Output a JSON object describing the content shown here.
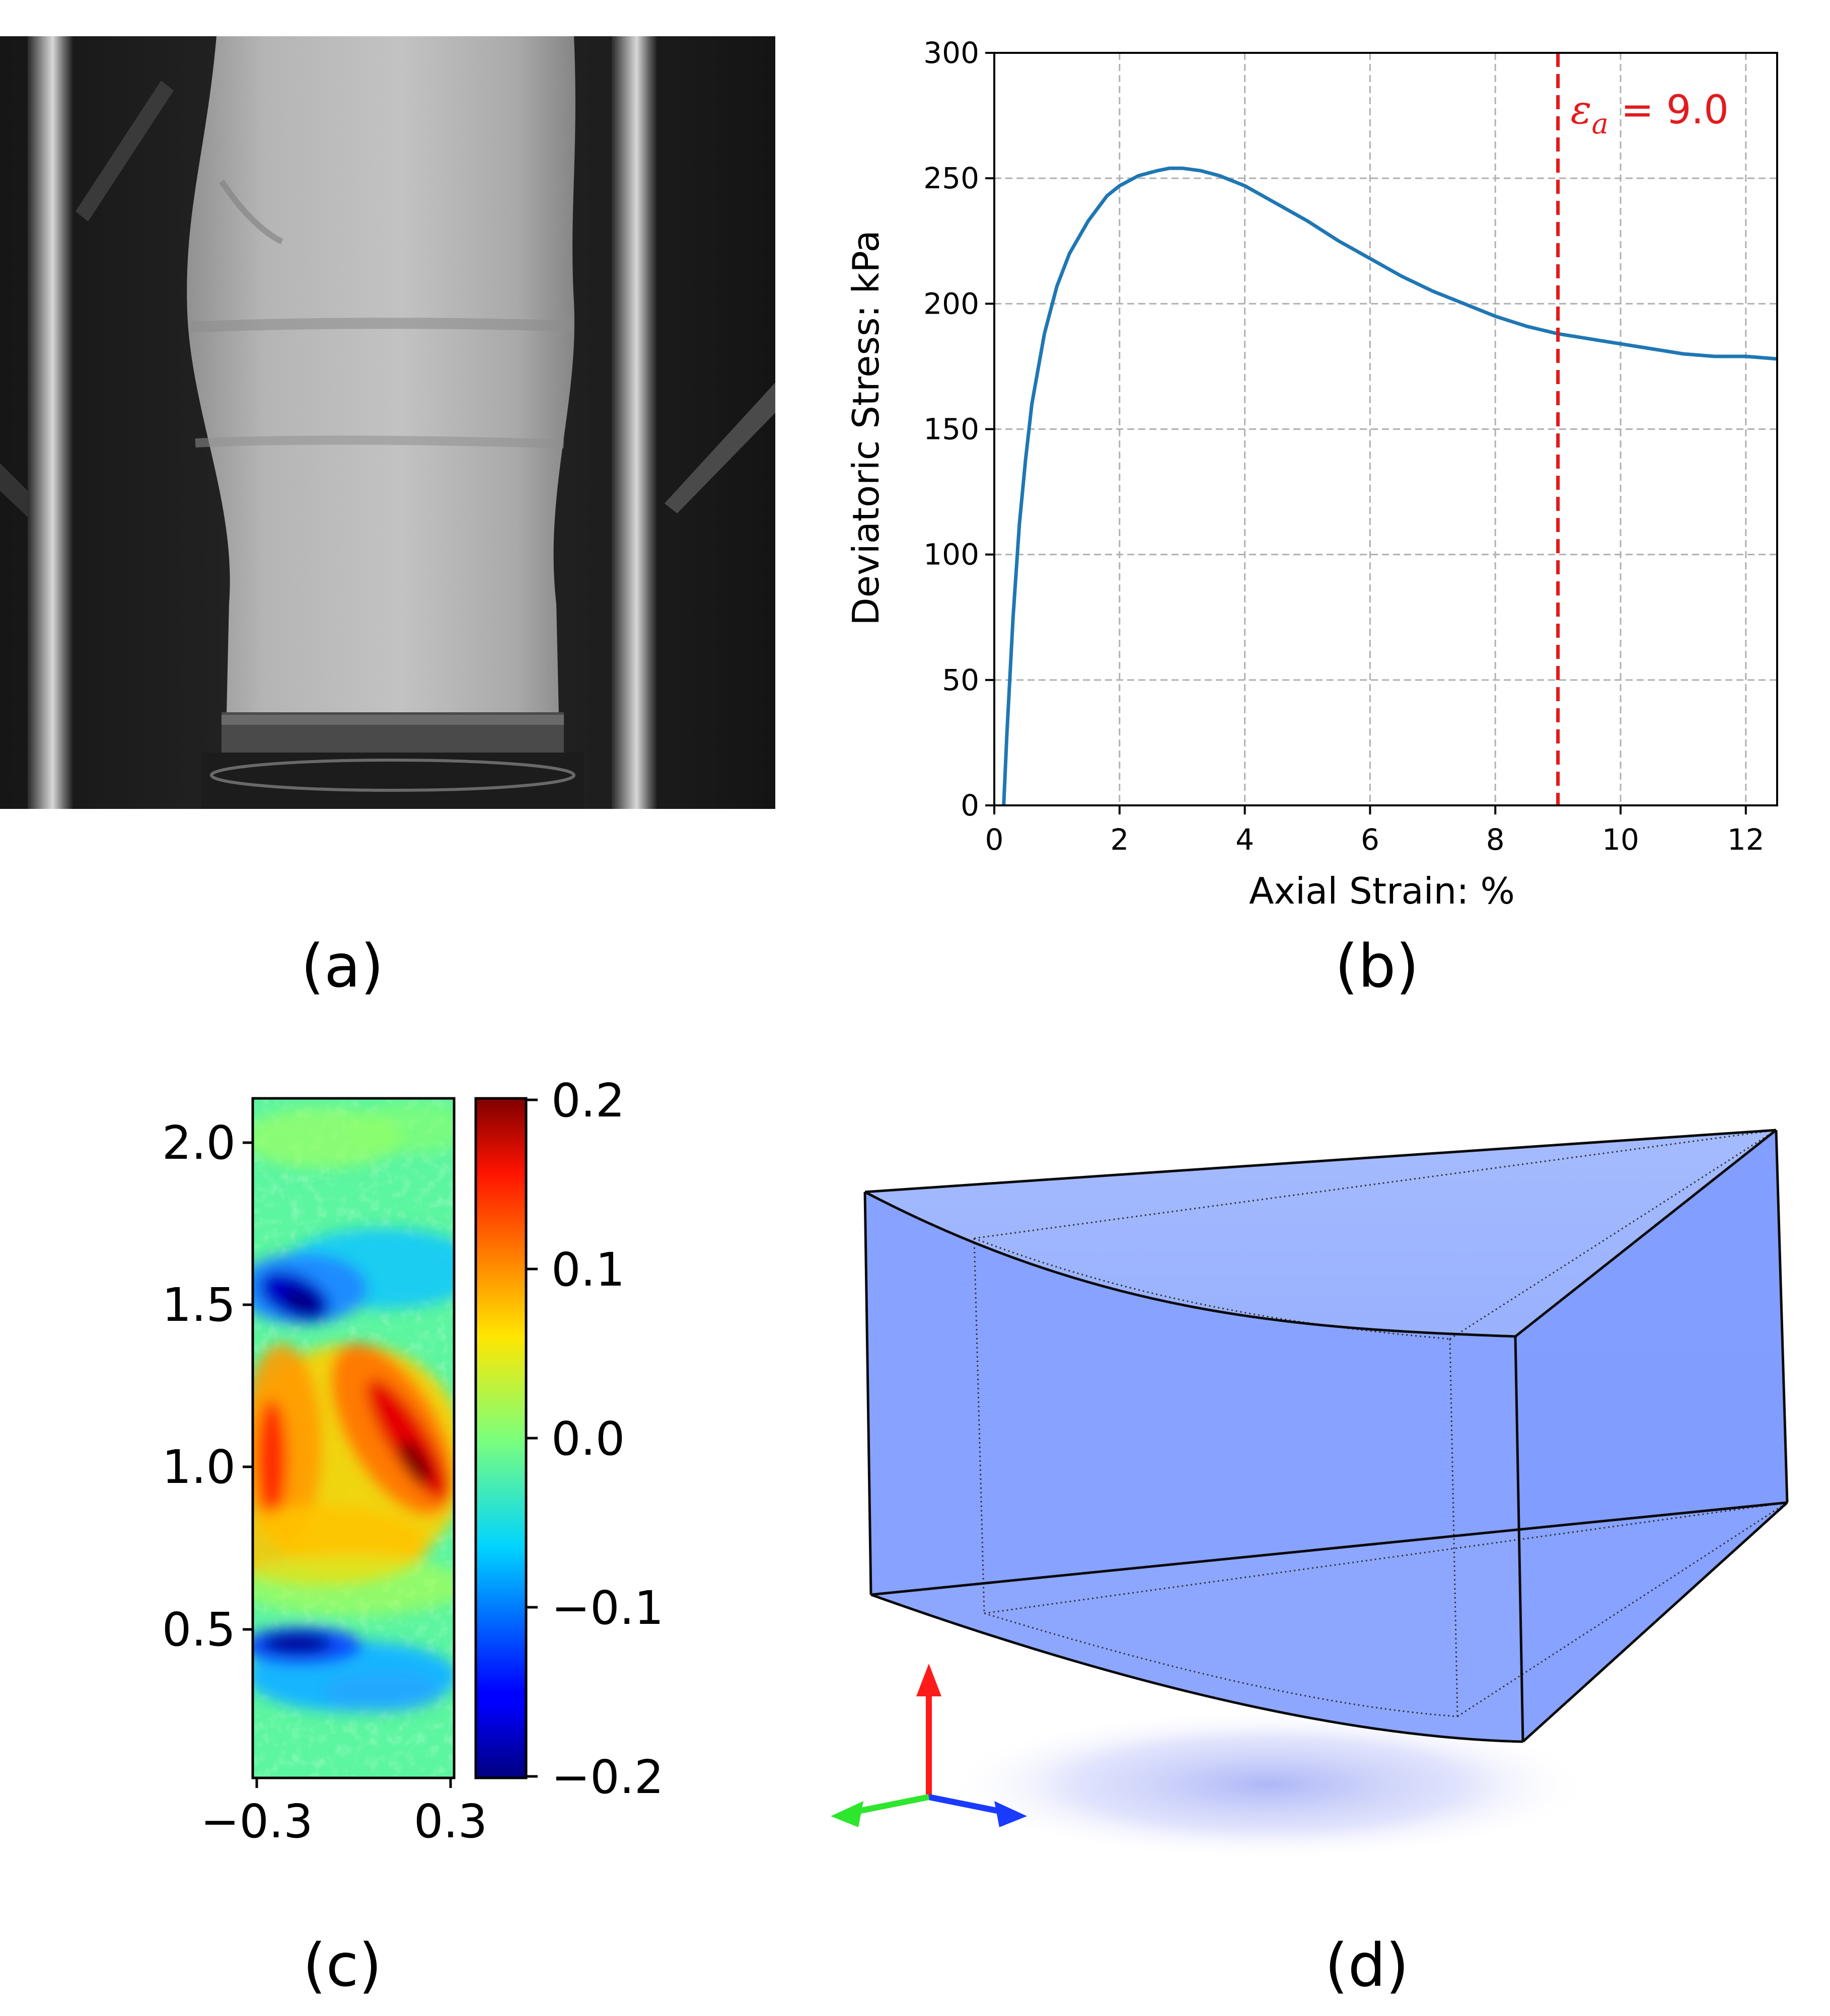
{
  "panels": {
    "a": {
      "label": "(a)"
    },
    "b": {
      "label": "(b)"
    },
    "c": {
      "label": "(c)"
    },
    "d": {
      "label": "(d)"
    }
  },
  "colors": {
    "curve": "#1f77b4",
    "marker": "#e41a1c",
    "grid": "#b0b0b0",
    "box_fill": "#8aa8ff",
    "axis_x": "#1a3bff",
    "axis_y": "#ff1a1a",
    "axis_z": "#2ee62e"
  },
  "chart_data": [
    {
      "type": "line",
      "panel": "b",
      "xlabel": "Axial Strain: %",
      "ylabel": "Deviatoric Stress: kPa",
      "xlim": [
        0,
        12.5
      ],
      "ylim": [
        0,
        300
      ],
      "xticks": [
        0,
        2,
        4,
        6,
        8,
        10,
        12
      ],
      "yticks": [
        0,
        50,
        100,
        150,
        200,
        250,
        300
      ],
      "grid": true,
      "series": [
        {
          "x": [
            0.15,
            0.2,
            0.3,
            0.4,
            0.5,
            0.6,
            0.8,
            1.0,
            1.2,
            1.5,
            1.8,
            2.0,
            2.3,
            2.6,
            2.8,
            3.0,
            3.3,
            3.6,
            4.0,
            4.5,
            5.0,
            5.5,
            6.0,
            6.5,
            7.0,
            7.5,
            8.0,
            8.5,
            9.0,
            9.5,
            10.0,
            10.5,
            11.0,
            11.5,
            12.0,
            12.5
          ],
          "y": [
            0,
            28,
            75,
            112,
            138,
            160,
            188,
            207,
            220,
            233,
            243,
            247,
            251,
            253,
            254,
            254,
            253,
            251,
            247,
            240,
            233,
            225,
            218,
            211,
            205,
            200,
            195,
            191,
            188,
            186,
            184,
            182,
            180,
            179,
            179,
            178
          ]
        }
      ],
      "annotations": [
        {
          "type": "vline",
          "x": 9.0,
          "style": "dashed",
          "color": "#e41a1c",
          "text_symbol": "ε",
          "text_subscript": "a",
          "text_rest": " = 9.0"
        }
      ]
    },
    {
      "type": "heatmap",
      "panel": "c",
      "colormap": "jet",
      "xticks": [
        "−0.3",
        "0.3"
      ],
      "yticks": [
        "0.5",
        "1.0",
        "1.5",
        "2.0"
      ],
      "colorbar_ticks": [
        "0.2",
        "0.1",
        "0.0",
        "−0.1",
        "−0.2"
      ],
      "colorbar_range": [
        -0.2,
        0.2
      ]
    }
  ]
}
